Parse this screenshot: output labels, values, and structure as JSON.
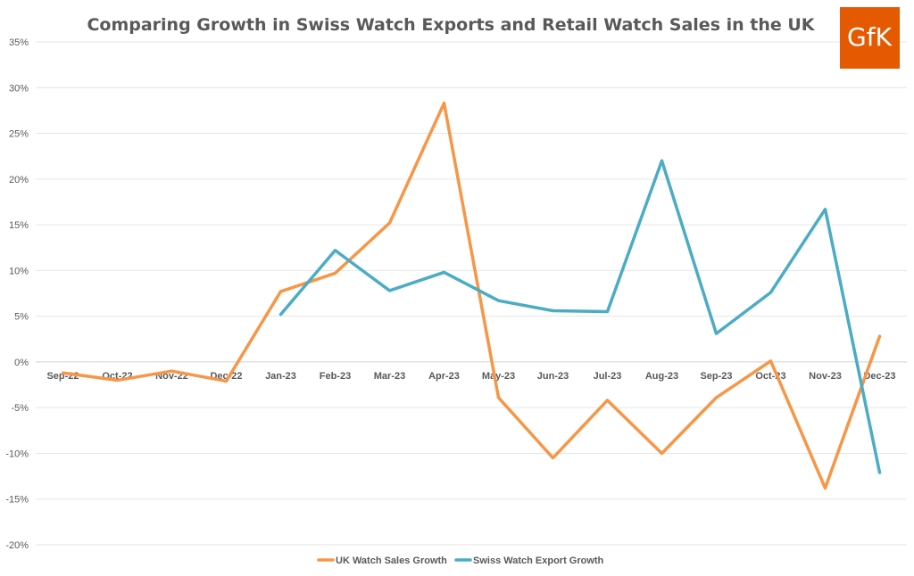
{
  "chart_data": {
    "type": "line",
    "title": "Comparing Growth in Swiss Watch Exports and Retail Watch Sales in the UK",
    "categories": [
      "Sep-22",
      "Oct-22",
      "Nov-22",
      "Dec-22",
      "Jan-23",
      "Feb-23",
      "Mar-23",
      "Apr-23",
      "May-23",
      "Jun-23",
      "Jul-23",
      "Aug-23",
      "Sep-23",
      "Oct-23",
      "Nov-23",
      "Dec-23"
    ],
    "series": [
      {
        "name": "UK Watch Sales Growth",
        "color": "#F79646",
        "values": [
          -1.2,
          -2.0,
          -1.0,
          -2.1,
          7.7,
          9.7,
          15.2,
          28.3,
          -3.9,
          -10.5,
          -4.2,
          -10.0,
          -3.9,
          0.1,
          -13.8,
          2.8
        ]
      },
      {
        "name": "Swiss Watch Export Growth",
        "color": "#4BACC6",
        "values": [
          null,
          null,
          null,
          null,
          5.2,
          12.2,
          7.8,
          9.8,
          6.7,
          5.6,
          5.5,
          22.0,
          3.1,
          7.6,
          16.7,
          -12.1
        ]
      }
    ],
    "yticks": [
      "35%",
      "30%",
      "25%",
      "20%",
      "15%",
      "10%",
      "5%",
      "0%",
      "-5%",
      "-10%",
      "-15%",
      "-20%"
    ],
    "ylim": [
      -20,
      35
    ],
    "grid": true,
    "legend_position": "bottom"
  },
  "logo": {
    "text": "GfK",
    "color": "#E55A00"
  }
}
